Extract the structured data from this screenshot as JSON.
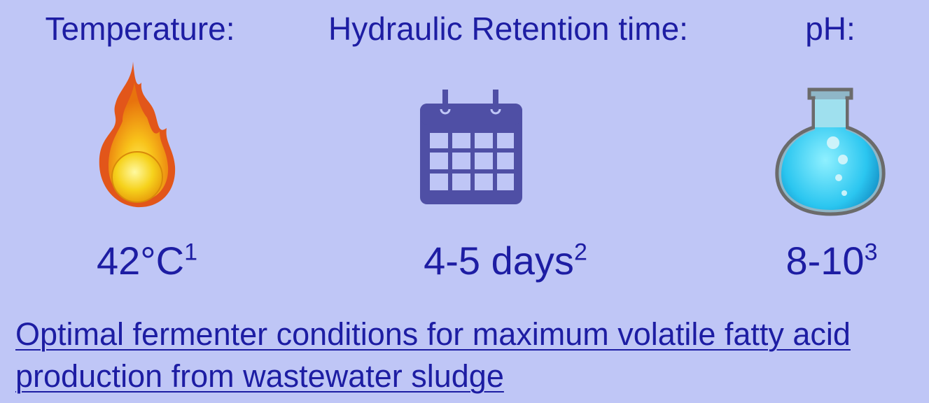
{
  "conditions": [
    {
      "label": "Temperature:",
      "value": "42°C",
      "note": "1"
    },
    {
      "label": "Hydraulic Retention time:",
      "value": "4-5 days",
      "note": "2"
    },
    {
      "label": "pH:",
      "value": "8-10",
      "note": "3"
    }
  ],
  "caption": "Optimal fermenter conditions for maximum volatile fatty acid production from wastewater sludge"
}
